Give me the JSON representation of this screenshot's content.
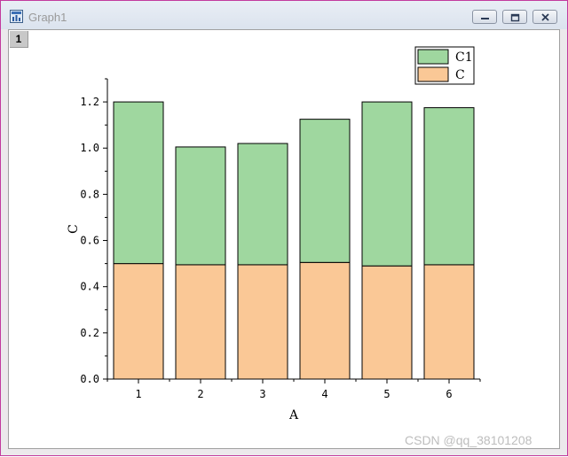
{
  "window": {
    "title": "Graph1",
    "layer_label": "1",
    "icon": "graph-window-icon",
    "buttons": [
      "minimize-icon",
      "restore-icon",
      "close-icon"
    ]
  },
  "watermark": "CSDN @qq_38101208",
  "chart_data": {
    "type": "bar",
    "stacked": true,
    "categories": [
      "1",
      "2",
      "3",
      "4",
      "5",
      "6"
    ],
    "series": [
      {
        "name": "C",
        "values": [
          0.5,
          0.495,
          0.495,
          0.505,
          0.49,
          0.495
        ],
        "color": "#fac896"
      },
      {
        "name": "C1",
        "values": [
          0.7,
          0.51,
          0.525,
          0.62,
          0.71,
          0.68
        ],
        "color": "#9fd79f"
      }
    ],
    "xlabel": "A",
    "ylabel": "C",
    "ylim": [
      0,
      1.3
    ],
    "yticks": [
      "0.0",
      "0.2",
      "0.4",
      "0.6",
      "0.8",
      "1.0",
      "1.2"
    ],
    "legend": {
      "placement": "top-right",
      "entries": [
        "C1",
        "C"
      ]
    },
    "grid": false
  }
}
